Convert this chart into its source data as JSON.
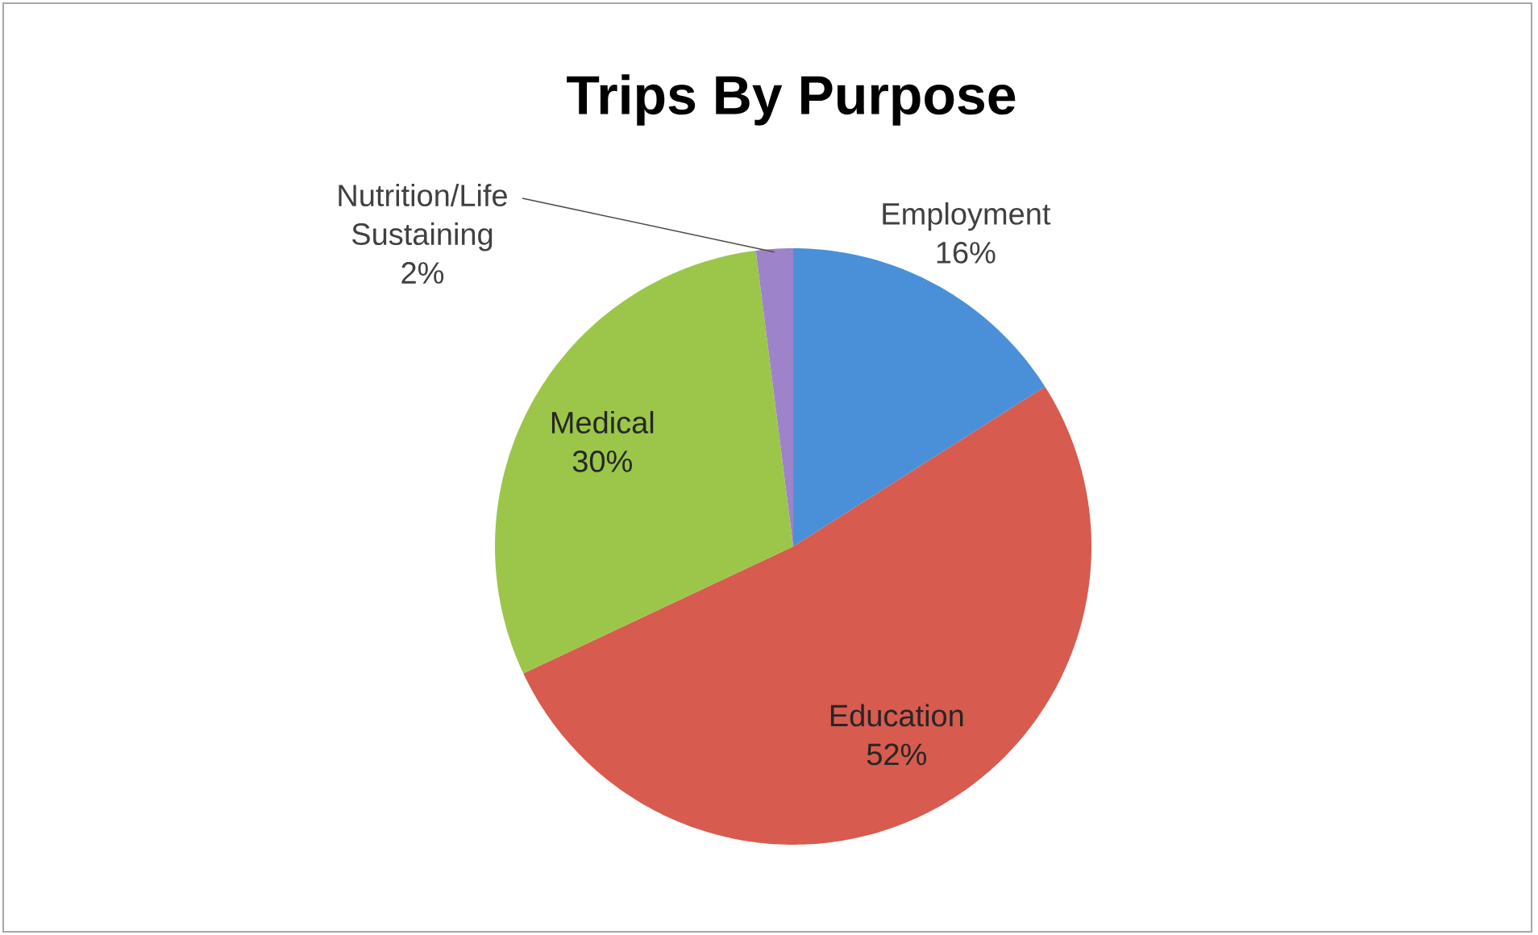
{
  "chart_data": {
    "type": "pie",
    "title": "Trips By Purpose",
    "categories": [
      "Employment",
      "Education",
      "Medical",
      "Nutrition/Life Sustaining"
    ],
    "values": [
      16,
      52,
      30,
      2
    ],
    "value_labels": [
      "16%",
      "52%",
      "30%",
      "2%"
    ],
    "colors": [
      "#4a90d9",
      "#d75b4e",
      "#9cc64a",
      "#9d83c9"
    ]
  }
}
